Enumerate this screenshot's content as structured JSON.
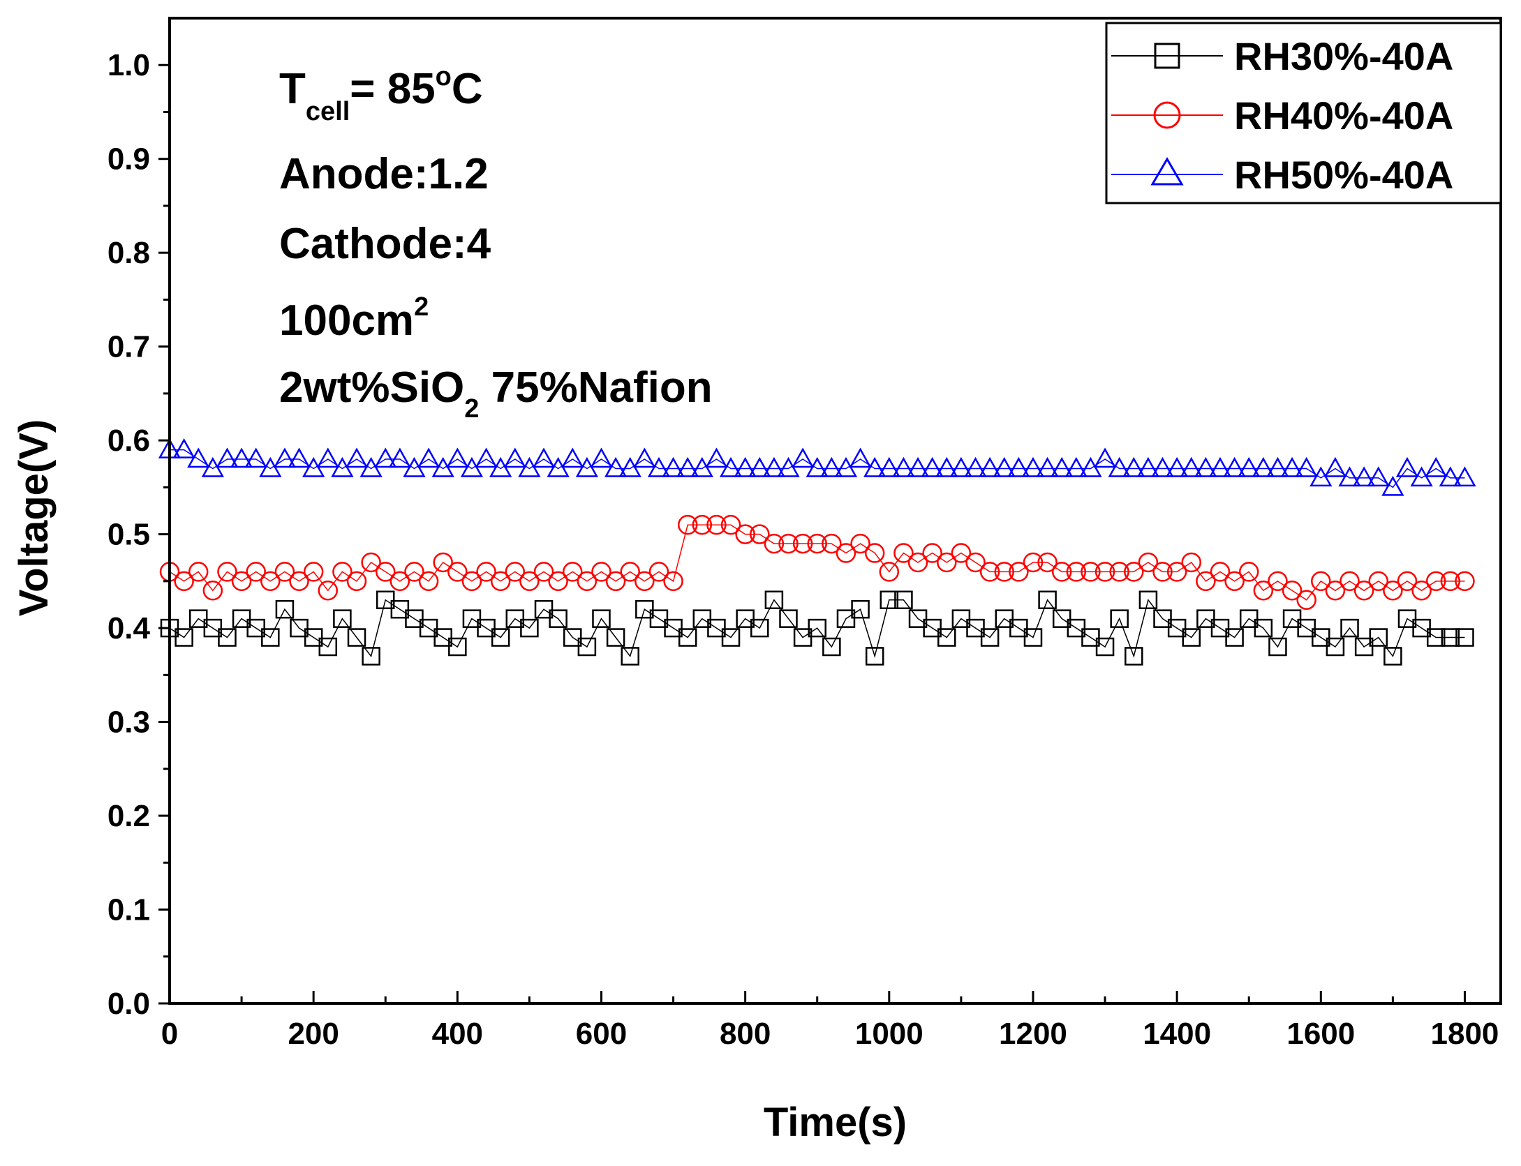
{
  "chart_data": {
    "type": "scatter",
    "title": "",
    "xlabel": "Time(s)",
    "ylabel": "Voltage(V)",
    "xlim": [
      0,
      1850
    ],
    "ylim": [
      0.0,
      1.05
    ],
    "xticks": [
      0,
      200,
      400,
      600,
      800,
      1000,
      1200,
      1400,
      1600,
      1800
    ],
    "yticks": [
      "0.0",
      "0.1",
      "0.2",
      "0.3",
      "0.4",
      "0.5",
      "0.6",
      "0.7",
      "0.8",
      "0.9",
      "1.0"
    ],
    "legend_position": "top-right",
    "series": [
      {
        "name": "RH30%-40A",
        "color": "#000000",
        "marker": "square",
        "x": [
          0,
          20,
          40,
          60,
          80,
          100,
          120,
          140,
          160,
          180,
          200,
          220,
          240,
          260,
          280,
          300,
          320,
          340,
          360,
          380,
          400,
          420,
          440,
          460,
          480,
          500,
          520,
          540,
          560,
          580,
          600,
          620,
          640,
          660,
          680,
          700,
          720,
          740,
          760,
          780,
          800,
          820,
          840,
          860,
          880,
          900,
          920,
          940,
          960,
          980,
          1000,
          1020,
          1040,
          1060,
          1080,
          1100,
          1120,
          1140,
          1160,
          1180,
          1200,
          1220,
          1240,
          1260,
          1280,
          1300,
          1320,
          1340,
          1360,
          1380,
          1400,
          1420,
          1440,
          1460,
          1480,
          1500,
          1520,
          1540,
          1560,
          1580,
          1600,
          1620,
          1640,
          1660,
          1680,
          1700,
          1720,
          1740,
          1760,
          1780,
          1800
        ],
        "y": [
          0.4,
          0.39,
          0.41,
          0.4,
          0.39,
          0.41,
          0.4,
          0.39,
          0.42,
          0.4,
          0.39,
          0.38,
          0.41,
          0.39,
          0.37,
          0.43,
          0.42,
          0.41,
          0.4,
          0.39,
          0.38,
          0.41,
          0.4,
          0.39,
          0.41,
          0.4,
          0.42,
          0.41,
          0.39,
          0.38,
          0.41,
          0.39,
          0.37,
          0.42,
          0.41,
          0.4,
          0.39,
          0.41,
          0.4,
          0.39,
          0.41,
          0.4,
          0.43,
          0.41,
          0.39,
          0.4,
          0.38,
          0.41,
          0.42,
          0.37,
          0.43,
          0.43,
          0.41,
          0.4,
          0.39,
          0.41,
          0.4,
          0.39,
          0.41,
          0.4,
          0.39,
          0.43,
          0.41,
          0.4,
          0.39,
          0.38,
          0.41,
          0.37,
          0.43,
          0.41,
          0.4,
          0.39,
          0.41,
          0.4,
          0.39,
          0.41,
          0.4,
          0.38,
          0.41,
          0.4,
          0.39,
          0.38,
          0.4,
          0.38,
          0.39,
          0.37,
          0.41,
          0.4,
          0.39,
          0.39,
          0.39
        ]
      },
      {
        "name": "RH40%-40A",
        "color": "#ff0000",
        "marker": "circle",
        "x": [
          0,
          20,
          40,
          60,
          80,
          100,
          120,
          140,
          160,
          180,
          200,
          220,
          240,
          260,
          280,
          300,
          320,
          340,
          360,
          380,
          400,
          420,
          440,
          460,
          480,
          500,
          520,
          540,
          560,
          580,
          600,
          620,
          640,
          660,
          680,
          700,
          720,
          740,
          760,
          780,
          800,
          820,
          840,
          860,
          880,
          900,
          920,
          940,
          960,
          980,
          1000,
          1020,
          1040,
          1060,
          1080,
          1100,
          1120,
          1140,
          1160,
          1180,
          1200,
          1220,
          1240,
          1260,
          1280,
          1300,
          1320,
          1340,
          1360,
          1380,
          1400,
          1420,
          1440,
          1460,
          1480,
          1500,
          1520,
          1540,
          1560,
          1580,
          1600,
          1620,
          1640,
          1660,
          1680,
          1700,
          1720,
          1740,
          1760,
          1780,
          1800
        ],
        "y": [
          0.46,
          0.45,
          0.46,
          0.44,
          0.46,
          0.45,
          0.46,
          0.45,
          0.46,
          0.45,
          0.46,
          0.44,
          0.46,
          0.45,
          0.47,
          0.46,
          0.45,
          0.46,
          0.45,
          0.47,
          0.46,
          0.45,
          0.46,
          0.45,
          0.46,
          0.45,
          0.46,
          0.45,
          0.46,
          0.45,
          0.46,
          0.45,
          0.46,
          0.45,
          0.46,
          0.45,
          0.51,
          0.51,
          0.51,
          0.51,
          0.5,
          0.5,
          0.49,
          0.49,
          0.49,
          0.49,
          0.49,
          0.48,
          0.49,
          0.48,
          0.46,
          0.48,
          0.47,
          0.48,
          0.47,
          0.48,
          0.47,
          0.46,
          0.46,
          0.46,
          0.47,
          0.47,
          0.46,
          0.46,
          0.46,
          0.46,
          0.46,
          0.46,
          0.47,
          0.46,
          0.46,
          0.47,
          0.45,
          0.46,
          0.45,
          0.46,
          0.44,
          0.45,
          0.44,
          0.43,
          0.45,
          0.44,
          0.45,
          0.44,
          0.45,
          0.44,
          0.45,
          0.44,
          0.45,
          0.45,
          0.45
        ]
      },
      {
        "name": "RH50%-40A",
        "color": "#0000ff",
        "marker": "triangle",
        "x": [
          0,
          20,
          40,
          60,
          80,
          100,
          120,
          140,
          160,
          180,
          200,
          220,
          240,
          260,
          280,
          300,
          320,
          340,
          360,
          380,
          400,
          420,
          440,
          460,
          480,
          500,
          520,
          540,
          560,
          580,
          600,
          620,
          640,
          660,
          680,
          700,
          720,
          740,
          760,
          780,
          800,
          820,
          840,
          860,
          880,
          900,
          920,
          940,
          960,
          980,
          1000,
          1020,
          1040,
          1060,
          1080,
          1100,
          1120,
          1140,
          1160,
          1180,
          1200,
          1220,
          1240,
          1260,
          1280,
          1300,
          1320,
          1340,
          1360,
          1380,
          1400,
          1420,
          1440,
          1460,
          1480,
          1500,
          1520,
          1540,
          1560,
          1580,
          1600,
          1620,
          1640,
          1660,
          1680,
          1700,
          1720,
          1740,
          1760,
          1780,
          1800
        ],
        "y": [
          0.59,
          0.59,
          0.58,
          0.57,
          0.58,
          0.58,
          0.58,
          0.57,
          0.58,
          0.58,
          0.57,
          0.58,
          0.57,
          0.58,
          0.57,
          0.58,
          0.58,
          0.57,
          0.58,
          0.57,
          0.58,
          0.57,
          0.58,
          0.57,
          0.58,
          0.57,
          0.58,
          0.57,
          0.58,
          0.57,
          0.58,
          0.57,
          0.57,
          0.58,
          0.57,
          0.57,
          0.57,
          0.57,
          0.58,
          0.57,
          0.57,
          0.57,
          0.57,
          0.57,
          0.58,
          0.57,
          0.57,
          0.57,
          0.58,
          0.57,
          0.57,
          0.57,
          0.57,
          0.57,
          0.57,
          0.57,
          0.57,
          0.57,
          0.57,
          0.57,
          0.57,
          0.57,
          0.57,
          0.57,
          0.57,
          0.58,
          0.57,
          0.57,
          0.57,
          0.57,
          0.57,
          0.57,
          0.57,
          0.57,
          0.57,
          0.57,
          0.57,
          0.57,
          0.57,
          0.57,
          0.56,
          0.57,
          0.56,
          0.56,
          0.56,
          0.55,
          0.57,
          0.56,
          0.57,
          0.56,
          0.56
        ]
      }
    ],
    "annotations": [
      {
        "text": "T",
        "sub": "cell",
        "after": "= 85",
        "sup": "o",
        "end": "C"
      },
      {
        "text": "Anode:1.2"
      },
      {
        "text": "Cathode:4"
      },
      {
        "text": "100cm",
        "sup": "2"
      },
      {
        "text": "2wt%SiO",
        "sub": "2",
        "after": " 75%Nafion"
      }
    ]
  }
}
